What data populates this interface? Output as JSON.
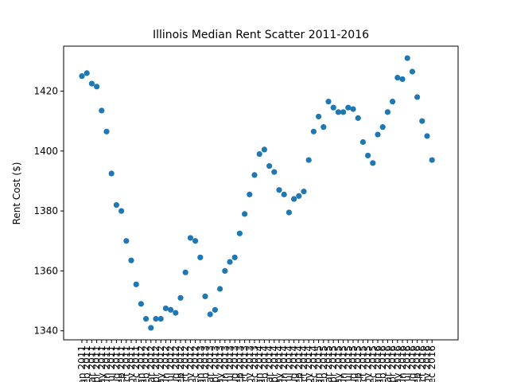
{
  "chart_data": {
    "type": "scatter",
    "title": "Illinois Median Rent Scatter 2011-2016",
    "xlabel": "",
    "ylabel": "Rent Cost ($)",
    "ylim": [
      1337,
      1435
    ],
    "yticks": [
      1340,
      1360,
      1380,
      1400,
      1420
    ],
    "grid": false,
    "legend": "none",
    "color": "#1f77b4",
    "x": [
      "Jan 2011",
      "Feb 2011",
      "Mar 2011",
      "Apr 2011",
      "May 2011",
      "Jun 2011",
      "Jul 2011",
      "Aug 2011",
      "Sep 2011",
      "Oct 2011",
      "Nov 2011",
      "Dec 2011",
      "Jan 2012",
      "Feb 2012",
      "Mar 2012",
      "Apr 2012",
      "May 2012",
      "Jun 2012",
      "Jul 2012",
      "Aug 2012",
      "Sep 2012",
      "Oct 2012",
      "Nov 2012",
      "Dec 2012",
      "Jan 2013",
      "Feb 2013",
      "Mar 2013",
      "Apr 2013",
      "May 2013",
      "Jun 2013",
      "Jul 2013",
      "Aug 2013",
      "Sep 2013",
      "Oct 2013",
      "Nov 2013",
      "Dec 2013",
      "Jan 2014",
      "Feb 2014",
      "Mar 2014",
      "Apr 2014",
      "May 2014",
      "Jun 2014",
      "Jul 2014",
      "Aug 2014",
      "Sep 2014",
      "Oct 2014",
      "Nov 2014",
      "Dec 2014",
      "Jan 2015",
      "Feb 2015",
      "Mar 2015",
      "Apr 2015",
      "May 2015",
      "Jun 2015",
      "Jul 2015",
      "Aug 2015",
      "Sep 2015",
      "Oct 2015",
      "Nov 2015",
      "Dec 2015",
      "Jan 2016",
      "Feb 2016",
      "Mar 2016",
      "Apr 2016",
      "May 2016",
      "Jun 2016",
      "Jul 2016",
      "Aug 2016",
      "Sep 2016",
      "Oct 2016",
      "Nov 2016",
      "Dec 2016"
    ],
    "y": [
      1425,
      1426,
      1422.5,
      1421.5,
      1413.5,
      1406.5,
      1392.5,
      1382,
      1380,
      1370,
      1363.5,
      1355.5,
      1349,
      1344,
      1341,
      1344,
      1344,
      1347.5,
      1347,
      1346,
      1351,
      1359.5,
      1371,
      1370,
      1364.5,
      1351.5,
      1345.5,
      1347,
      1354,
      1360,
      1363,
      1364.5,
      1372.5,
      1379,
      1385.5,
      1392,
      1399,
      1400.5,
      1395,
      1393,
      1387,
      1385.5,
      1379.5,
      1384,
      1385,
      1386.5,
      1397,
      1406.5,
      1411.5,
      1408,
      1416.5,
      1414.5,
      1413,
      1413,
      1414.5,
      1414,
      1411,
      1403,
      1398.5,
      1396,
      1405.5,
      1408,
      1413,
      1416.5,
      1424.5,
      1424,
      1431,
      1426.5,
      1418,
      1410,
      1405,
      1397
    ]
  }
}
